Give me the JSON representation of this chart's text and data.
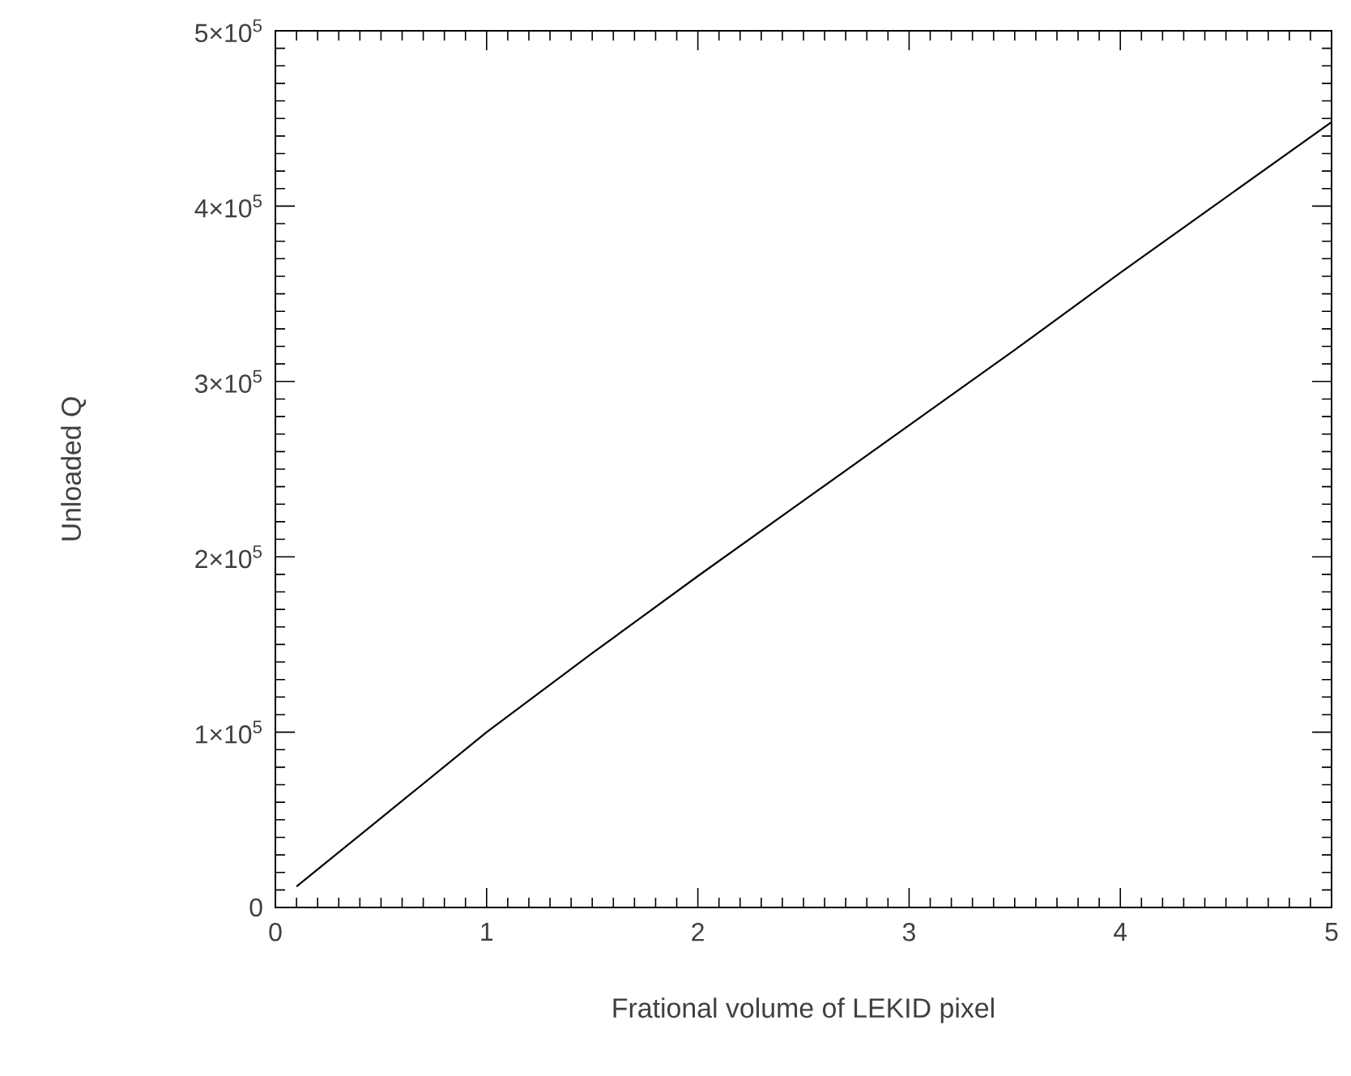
{
  "chart_data": {
    "type": "line",
    "xlabel": "Frational volume of LEKID pixel",
    "ylabel": "Unloaded Q",
    "x": [
      0.1,
      0.5,
      1,
      1.5,
      2,
      2.5,
      3,
      3.5,
      4,
      4.5,
      5
    ],
    "series": [
      {
        "color": "#000000",
        "values": [
          12000,
          51000,
          100000,
          145000,
          189000,
          232000,
          275000,
          318000,
          362000,
          405000,
          448000
        ]
      }
    ],
    "xlim": [
      0,
      5
    ],
    "ylim": [
      0,
      500000
    ],
    "xticks": [
      0,
      1,
      2,
      3,
      4,
      5
    ],
    "yticks": [
      0,
      {
        "value": 100000,
        "label": "1×10$^{5}$"
      },
      {
        "value": 200000,
        "label": "2×10$^{5}$"
      },
      {
        "value": 300000,
        "label": "3×10$^{5}$"
      },
      {
        "value": 400000,
        "label": "4×10$^{5}$"
      },
      {
        "value": 500000,
        "label": "5×10$^{5}$"
      }
    ],
    "grid": false,
    "marker": "none",
    "line_style": "solid"
  }
}
